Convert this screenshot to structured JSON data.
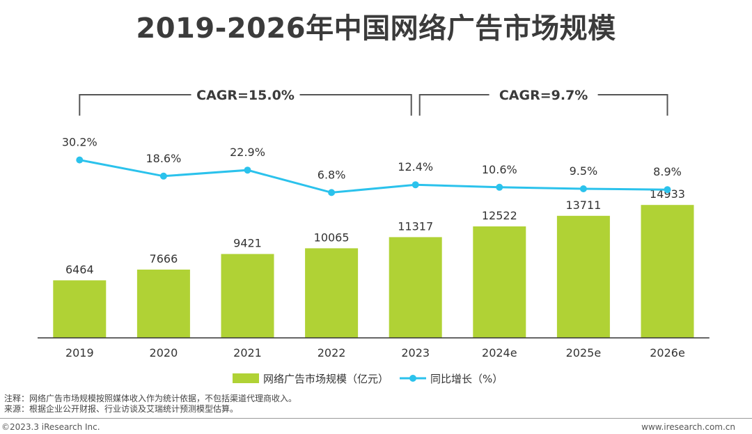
{
  "title": "2019-2026年中国网络广告市场规模",
  "colors": {
    "bar": "#b0d235",
    "line": "#2bc2ec",
    "axis": "#333333",
    "bracket": "#555555",
    "text": "#333333"
  },
  "chart_data": {
    "type": "bar",
    "categories": [
      "2019",
      "2020",
      "2021",
      "2022",
      "2023",
      "2024e",
      "2025e",
      "2026e"
    ],
    "series": [
      {
        "name": "网络广告市场规模（亿元）",
        "type": "bar",
        "values": [
          6464,
          7666,
          9421,
          10065,
          11317,
          12522,
          13711,
          14933
        ],
        "labels": [
          "6464",
          "7666",
          "9421",
          "10065",
          "11317",
          "12522",
          "13711",
          "14933"
        ]
      },
      {
        "name": "同比增长（%）",
        "type": "line",
        "values": [
          30.2,
          18.6,
          22.9,
          6.8,
          12.4,
          10.6,
          9.5,
          8.9
        ],
        "labels": [
          "30.2%",
          "18.6%",
          "22.9%",
          "6.8%",
          "12.4%",
          "10.6%",
          "9.5%",
          "8.9%"
        ]
      }
    ],
    "annotations": [
      {
        "text": "CAGR=15.0%",
        "from": "2019",
        "to": "2023"
      },
      {
        "text": "CAGR=9.7%",
        "from": "2023",
        "to": "2026e"
      }
    ],
    "legend_position": "bottom",
    "grid": false
  },
  "notes": {
    "note": "注释：网络广告市场规模按照媒体收入作为统计依据，不包括渠道代理商收入。",
    "source": "来源：根据企业公开财报、行业访谈及艾瑞统计预测模型估算。"
  },
  "footer": {
    "copyright": "©2023.3 iResearch Inc.",
    "website": "www.iresearch.com.cn"
  }
}
